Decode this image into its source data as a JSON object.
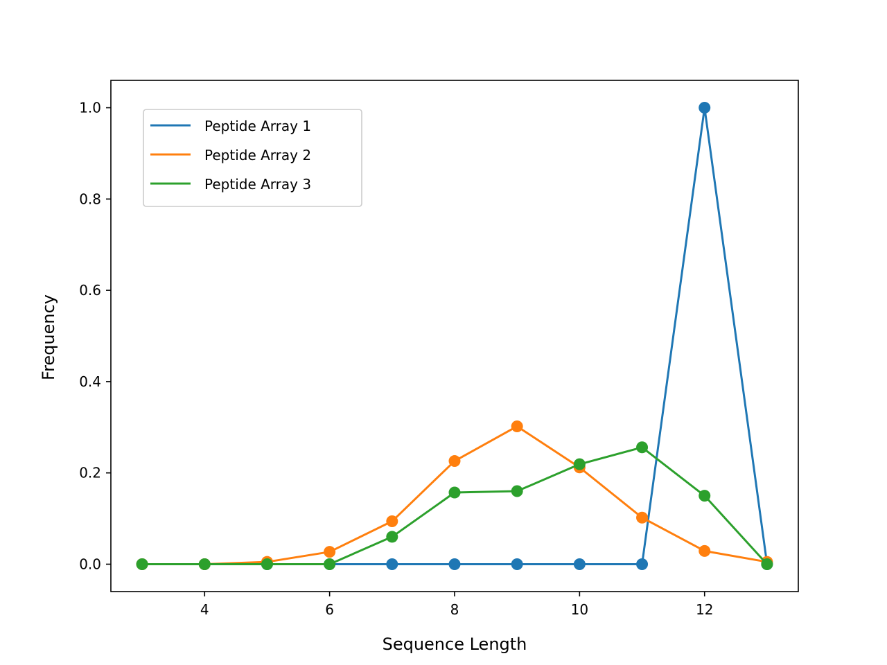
{
  "chart_data": {
    "type": "line",
    "title": "",
    "xlabel": "Sequence Length",
    "ylabel": "Frequency",
    "xlim": [
      2.5,
      13.5
    ],
    "ylim": [
      -0.06,
      1.06
    ],
    "xticks": [
      4,
      6,
      8,
      10,
      12
    ],
    "yticks": [
      0.0,
      0.2,
      0.4,
      0.6,
      0.8,
      1.0
    ],
    "xtick_labels": [
      "4",
      "6",
      "8",
      "10",
      "12"
    ],
    "ytick_labels": [
      "0.0",
      "0.2",
      "0.4",
      "0.6",
      "0.8",
      "1.0"
    ],
    "grid": false,
    "legend_position": "upper-left",
    "x": [
      3,
      4,
      5,
      6,
      7,
      8,
      9,
      10,
      11,
      12,
      13
    ],
    "series": [
      {
        "name": "Peptide Array 1",
        "color": "#1f77b4",
        "values": [
          0.0,
          0.0,
          0.0,
          0.0,
          0.0,
          0.0,
          0.0,
          0.0,
          0.0,
          1.0,
          0.0
        ]
      },
      {
        "name": "Peptide Array 2",
        "color": "#ff7f0e",
        "values": [
          0.0,
          0.0,
          0.005,
          0.027,
          0.094,
          0.226,
          0.302,
          0.212,
          0.102,
          0.029,
          0.005
        ]
      },
      {
        "name": "Peptide Array 3",
        "color": "#2ca02c",
        "values": [
          0.0,
          0.0,
          0.0,
          0.0,
          0.06,
          0.157,
          0.16,
          0.219,
          0.256,
          0.15,
          0.0
        ]
      }
    ]
  }
}
